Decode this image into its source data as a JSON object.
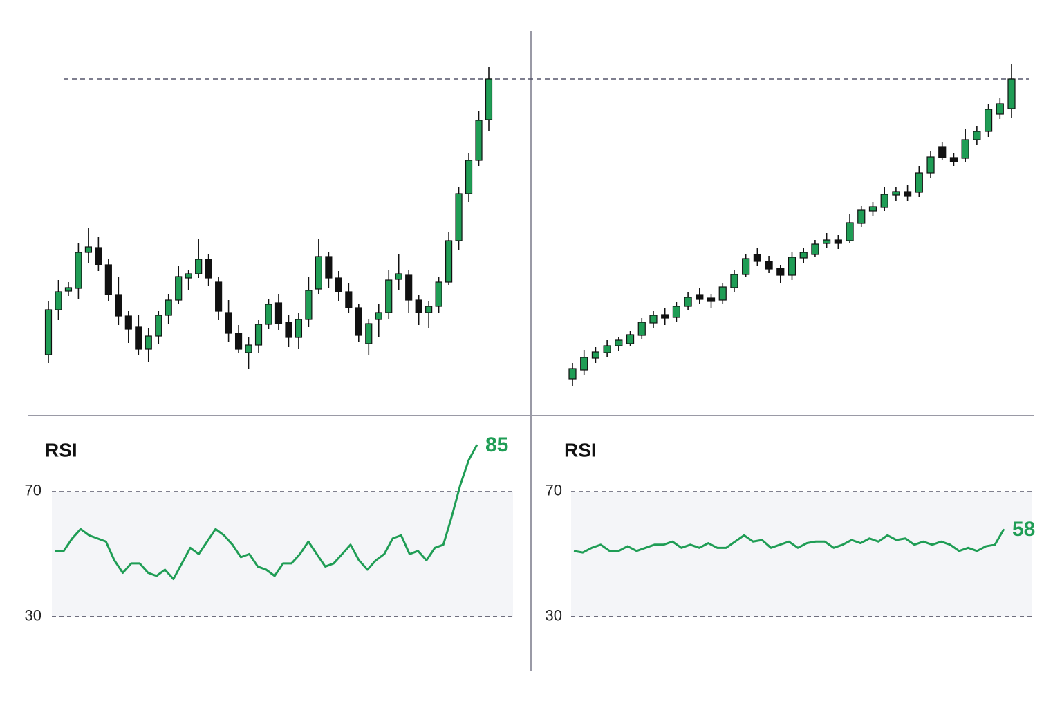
{
  "chart_data": [
    {
      "type": "candlestick",
      "up_color": "#1f9d55",
      "down_color": "#111111",
      "ylim": [
        0,
        560
      ],
      "open": [
        87,
        152,
        179,
        183,
        235,
        242,
        217,
        174,
        143,
        127,
        95,
        114,
        144,
        166,
        198,
        204,
        225,
        192,
        148,
        118,
        90,
        101,
        131,
        162,
        134,
        112,
        138,
        182,
        229,
        198,
        178,
        155,
        103,
        138,
        148,
        196,
        202,
        166,
        148,
        157,
        192,
        252,
        320,
        368,
        427
      ],
      "high": [
        165,
        195,
        192,
        248,
        270,
        257,
        225,
        200,
        150,
        145,
        125,
        150,
        175,
        215,
        210,
        255,
        232,
        200,
        166,
        130,
        112,
        137,
        168,
        175,
        145,
        148,
        200,
        255,
        235,
        208,
        190,
        160,
        138,
        160,
        210,
        232,
        210,
        174,
        165,
        200,
        265,
        330,
        378,
        440,
        503
      ],
      "low": [
        75,
        137,
        172,
        167,
        220,
        208,
        164,
        130,
        104,
        87,
        77,
        103,
        132,
        160,
        180,
        198,
        186,
        137,
        105,
        90,
        67,
        90,
        124,
        122,
        98,
        95,
        127,
        175,
        184,
        164,
        148,
        106,
        87,
        112,
        138,
        180,
        148,
        130,
        125,
        148,
        188,
        238,
        308,
        360,
        410
      ],
      "close": [
        152,
        178,
        184,
        235,
        243,
        217,
        174,
        143,
        124,
        95,
        114,
        144,
        166,
        200,
        204,
        225,
        198,
        150,
        118,
        95,
        101,
        131,
        160,
        132,
        112,
        138,
        180,
        229,
        198,
        178,
        155,
        115,
        132,
        148,
        195,
        204,
        166,
        148,
        157,
        192,
        252,
        320,
        368,
        426,
        486
      ]
    },
    {
      "type": "line",
      "title": "RSI",
      "color": "#1f9d55",
      "ylim": [
        20,
        90
      ],
      "yticks": [
        30,
        70
      ],
      "values": [
        51,
        51,
        55,
        58,
        56,
        55,
        54,
        48,
        44,
        47,
        47,
        44,
        43,
        45,
        42,
        47,
        52,
        50,
        54,
        58,
        56,
        53,
        49,
        50,
        46,
        45,
        43,
        47,
        47,
        50,
        54,
        50,
        46,
        47,
        50,
        53,
        48,
        45,
        48,
        50,
        55,
        56,
        50,
        51,
        48,
        52,
        53,
        62,
        72,
        80,
        85
      ]
    },
    {
      "type": "candlestick",
      "up_color": "#1f9d55",
      "down_color": "#111111",
      "ylim": [
        0,
        560
      ],
      "open": [
        52,
        65,
        82,
        90,
        100,
        103,
        115,
        133,
        145,
        141,
        157,
        174,
        169,
        166,
        184,
        203,
        232,
        222,
        212,
        202,
        227,
        232,
        248,
        253,
        252,
        277,
        295,
        300,
        318,
        323,
        322,
        350,
        388,
        372,
        371,
        398,
        410,
        435,
        443
      ],
      "high": [
        75,
        94,
        98,
        108,
        113,
        121,
        140,
        150,
        155,
        163,
        177,
        183,
        175,
        190,
        210,
        233,
        242,
        230,
        217,
        235,
        242,
        253,
        263,
        260,
        290,
        302,
        308,
        330,
        330,
        332,
        360,
        382,
        395,
        378,
        413,
        418,
        450,
        458,
        508
      ],
      "low": [
        42,
        58,
        75,
        84,
        92,
        100,
        110,
        126,
        130,
        135,
        152,
        160,
        155,
        160,
        177,
        200,
        215,
        205,
        190,
        195,
        220,
        228,
        242,
        240,
        248,
        272,
        288,
        295,
        310,
        310,
        315,
        342,
        368,
        360,
        365,
        390,
        402,
        428,
        430
      ],
      "close": [
        67,
        83,
        91,
        100,
        108,
        116,
        134,
        144,
        140,
        157,
        170,
        167,
        164,
        185,
        203,
        226,
        222,
        211,
        202,
        228,
        235,
        247,
        253,
        248,
        278,
        296,
        301,
        319,
        323,
        316,
        350,
        373,
        372,
        366,
        398,
        410,
        442,
        450,
        486
      ]
    },
    {
      "type": "line",
      "title": "RSI",
      "color": "#1f9d55",
      "ylim": [
        20,
        90
      ],
      "yticks": [
        30,
        70
      ],
      "values": [
        51,
        50.5,
        52,
        53,
        51,
        51,
        52.5,
        51,
        52,
        53,
        53,
        54,
        52,
        53,
        52,
        53.5,
        52,
        52,
        54,
        56,
        54,
        54.5,
        52,
        53,
        54,
        52,
        53.5,
        54,
        54,
        52,
        53,
        54.5,
        53.5,
        55,
        54,
        56,
        54.5,
        55,
        53,
        54,
        53,
        54,
        53,
        51,
        52,
        51,
        52.5,
        53,
        58
      ]
    }
  ]
}
